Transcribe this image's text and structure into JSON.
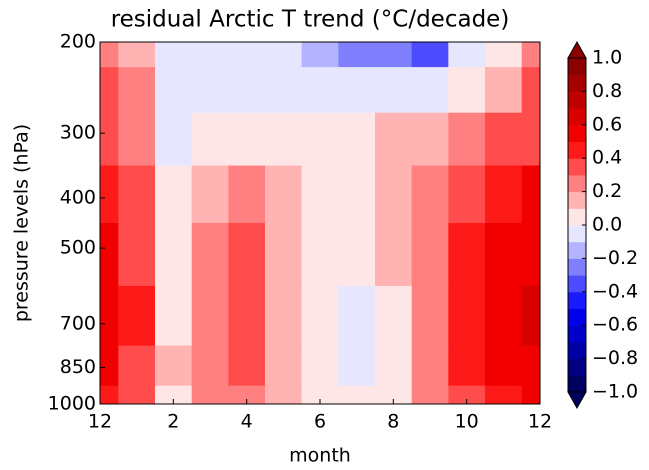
{
  "chart_data": {
    "type": "contour",
    "title": "residual Arctic T trend (°C/decade)",
    "xlabel": "month",
    "ylabel": "pressure levels (hPa)",
    "x": [
      0,
      1,
      2,
      3,
      4,
      5,
      6,
      7,
      8,
      9,
      10,
      11,
      12
    ],
    "y": [
      200,
      250,
      300,
      400,
      500,
      700,
      850,
      1000
    ],
    "z": [
      [
        0.25,
        0.15,
        -0.05,
        -0.05,
        -0.05,
        -0.05,
        -0.15,
        -0.25,
        -0.3,
        -0.35,
        -0.1,
        0.05,
        0.2
      ],
      [
        0.3,
        0.2,
        -0.05,
        -0.05,
        -0.05,
        -0.05,
        -0.05,
        -0.1,
        -0.1,
        -0.1,
        0.05,
        0.15,
        0.3
      ],
      [
        0.35,
        0.25,
        -0.05,
        0.05,
        0.05,
        0.05,
        0.05,
        0.05,
        0.1,
        0.15,
        0.2,
        0.3,
        0.35
      ],
      [
        0.45,
        0.35,
        0.05,
        0.15,
        0.25,
        0.15,
        0.05,
        0.05,
        0.15,
        0.25,
        0.35,
        0.45,
        0.5
      ],
      [
        0.5,
        0.35,
        0.05,
        0.25,
        0.35,
        0.15,
        0.05,
        0.05,
        0.15,
        0.25,
        0.4,
        0.5,
        0.55
      ],
      [
        0.55,
        0.4,
        0.05,
        0.25,
        0.35,
        0.15,
        0.05,
        -0.05,
        0.05,
        0.25,
        0.45,
        0.55,
        0.6
      ],
      [
        0.5,
        0.35,
        0.1,
        0.25,
        0.3,
        0.15,
        0.05,
        -0.05,
        0.05,
        0.25,
        0.4,
        0.5,
        0.55
      ],
      [
        0.45,
        0.3,
        0.05,
        0.2,
        0.25,
        0.1,
        0.05,
        0.05,
        0.05,
        0.2,
        0.35,
        0.45,
        0.5
      ]
    ],
    "xlim": [
      0,
      12
    ],
    "xticks": [
      {
        "value": 0,
        "label": "12"
      },
      2,
      4,
      6,
      8,
      10,
      12
    ],
    "ylim": [
      200,
      1000
    ],
    "y_scale": "log",
    "y_inverted": true,
    "yticks": [
      200,
      300,
      400,
      500,
      700,
      850,
      1000
    ],
    "levels": [
      -1,
      -0.9,
      -0.8,
      -0.7,
      -0.6,
      -0.5,
      -0.4,
      -0.3,
      -0.2,
      -0.1,
      0,
      0.1,
      0.2,
      0.3,
      0.4,
      0.5,
      0.6,
      0.7,
      0.8,
      0.9,
      1
    ],
    "colors": [
      "#00005e",
      "#000082",
      "#0000a6",
      "#0000c9",
      "#0000ed",
      "#1a1aff",
      "#4d4dff",
      "#8080ff",
      "#b3b3ff",
      "#e6e6ff",
      "#ffe6e6",
      "#ffb3b3",
      "#ff8080",
      "#ff4d4d",
      "#ff1a1a",
      "#f20000",
      "#d90000",
      "#bf0000",
      "#a60000",
      "#8c0000"
    ],
    "colorbar_ticks": [
      {
        "value": 1,
        "label": "1.0"
      },
      0.8,
      0.6,
      0.4,
      0.2,
      {
        "value": 0,
        "label": "0.0"
      },
      {
        "value": -0.2,
        "label": "−0.2"
      },
      {
        "value": -0.4,
        "label": "−0.4"
      },
      {
        "value": -0.6,
        "label": "−0.6"
      },
      {
        "value": -0.8,
        "label": "−0.8"
      },
      {
        "value": -1,
        "label": "−1.0"
      }
    ]
  }
}
